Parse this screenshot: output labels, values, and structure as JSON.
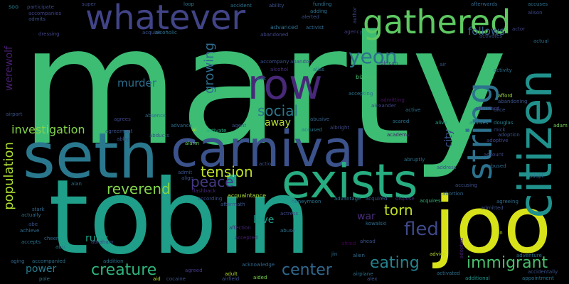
{
  "words": [
    {
      "text": "marty",
      "color": "#3dbc74"
    },
    {
      "text": "tobin",
      "color": "#1f9e89"
    },
    {
      "text": "seth",
      "color": "#2a788e"
    },
    {
      "text": "carnival",
      "color": "#3b528b"
    },
    {
      "text": "exists",
      "color": "#27ad81"
    },
    {
      "text": "joo",
      "color": "#d8e219"
    },
    {
      "text": "citizen",
      "color": "#21918c"
    },
    {
      "text": "whatever",
      "color": "#414487"
    },
    {
      "text": "gathered",
      "color": "#5ec962"
    },
    {
      "text": "row",
      "color": "#482878"
    },
    {
      "text": "string",
      "color": "#2c728e"
    },
    {
      "text": "yeon",
      "color": "#2c728e"
    },
    {
      "text": "social",
      "color": "#2a788e"
    },
    {
      "text": "tension",
      "color": "#bddf26"
    },
    {
      "text": "reverend",
      "color": "#84d44b"
    },
    {
      "text": "peace",
      "color": "#443983"
    },
    {
      "text": "population",
      "color": "#addc30"
    },
    {
      "text": "investigation",
      "color": "#84d44b"
    },
    {
      "text": "creature",
      "color": "#2fb47c"
    },
    {
      "text": "center",
      "color": "#31688e"
    },
    {
      "text": "eating",
      "color": "#25838e"
    },
    {
      "text": "immigrant",
      "color": "#4ac16d"
    },
    {
      "text": "fled",
      "color": "#3e4989"
    },
    {
      "text": "torn",
      "color": "#bddf26"
    },
    {
      "text": "growing",
      "color": "#2f6c8e"
    },
    {
      "text": "werewolf",
      "color": "#481f70"
    },
    {
      "text": "murder",
      "color": "#2e6e8e"
    },
    {
      "text": "follows",
      "color": "#35608d"
    },
    {
      "text": "away",
      "color": "#b5de2b"
    },
    {
      "text": "city",
      "color": "#3b528b"
    },
    {
      "text": "war",
      "color": "#472c7a"
    },
    {
      "text": "love",
      "color": "#1f9a8a"
    },
    {
      "text": "ruby",
      "color": "#1fa088"
    },
    {
      "text": "power",
      "color": "#297b8e"
    },
    {
      "text": "advanced",
      "color": "#2d708e"
    },
    {
      "text": "funding",
      "color": "#2d708e"
    },
    {
      "text": "soo",
      "color": "#26818e"
    },
    {
      "text": "participate",
      "color": "#3e4c8a"
    },
    {
      "text": "activist",
      "color": "#31688e"
    },
    {
      "text": "alcohol",
      "color": "#472d7b"
    },
    {
      "text": "accompany",
      "color": "#3b528b"
    },
    {
      "text": "abandon",
      "color": "#3e4a89"
    },
    {
      "text": "alias",
      "color": "#2c728e"
    },
    {
      "text": "bizarre",
      "color": "#44bf70"
    },
    {
      "text": "african",
      "color": "#443b84"
    },
    {
      "text": "actor",
      "color": "#414487"
    },
    {
      "text": "acquire",
      "color": "#3b528b"
    },
    {
      "text": "abandoned",
      "color": "#3f4788"
    },
    {
      "text": "alexander",
      "color": "#414487"
    },
    {
      "text": "accepting",
      "color": "#2a768e"
    },
    {
      "text": "admitting",
      "color": "#481467"
    },
    {
      "text": "activity",
      "color": "#2d708e"
    },
    {
      "text": "afford",
      "color": "#9fda3a"
    },
    {
      "text": "abandoning",
      "color": "#3b528b"
    },
    {
      "text": "douglas",
      "color": "#26828e"
    },
    {
      "text": "advises",
      "color": "#2a778e"
    },
    {
      "text": "adam",
      "color": "#73d056"
    },
    {
      "text": "account",
      "color": "#3e4989"
    },
    {
      "text": "adopt",
      "color": "#2d718e"
    },
    {
      "text": "accused",
      "color": "#2a788e"
    },
    {
      "text": "alive",
      "color": "#22a785"
    },
    {
      "text": "academy",
      "color": "#481769"
    },
    {
      "text": "active",
      "color": "#2c728e"
    },
    {
      "text": "abusive",
      "color": "#33638d"
    },
    {
      "text": "advance",
      "color": "#2e6f8e"
    },
    {
      "text": "activate",
      "color": "#27ad81"
    },
    {
      "text": "agent",
      "color": "#3b528b"
    },
    {
      "text": "ai",
      "color": "#b8de29"
    },
    {
      "text": "alarm",
      "color": "#65cb5e"
    },
    {
      "text": "action",
      "color": "#3b528b"
    },
    {
      "text": "acquaintance",
      "color": "#a8db34"
    },
    {
      "text": "according",
      "color": "#3b528b"
    },
    {
      "text": "aftermath",
      "color": "#39568c"
    },
    {
      "text": "affection",
      "color": "#482878"
    },
    {
      "text": "accepted",
      "color": "#482173"
    },
    {
      "text": "honeymoon",
      "color": "#2c728e"
    },
    {
      "text": "advantage",
      "color": "#2d708e"
    },
    {
      "text": "acquired",
      "color": "#3b528b"
    },
    {
      "text": "dispose",
      "color": "#482878"
    },
    {
      "text": "acquires",
      "color": "#35b779"
    },
    {
      "text": "abortion",
      "color": "#31688e"
    },
    {
      "text": "admitted",
      "color": "#3b528b"
    },
    {
      "text": "agreeing",
      "color": "#2f6b8e"
    },
    {
      "text": "actress",
      "color": "#3e4a89"
    },
    {
      "text": "kowalski",
      "color": "#2e6e8e"
    },
    {
      "text": "abuse",
      "color": "#2c728e"
    },
    {
      "text": "afraid",
      "color": "#440154"
    },
    {
      "text": "ahead",
      "color": "#3b528b"
    },
    {
      "text": "alien",
      "color": "#2f6c8e"
    },
    {
      "text": "airplane",
      "color": "#2c728e"
    },
    {
      "text": "alex",
      "color": "#3b528b"
    },
    {
      "text": "advice",
      "color": "#b5de2b"
    },
    {
      "text": "activated",
      "color": "#2d708e"
    },
    {
      "text": "additional",
      "color": "#1f958b"
    },
    {
      "text": "adventure",
      "color": "#2c728e"
    },
    {
      "text": "accidentally",
      "color": "#3b528b"
    },
    {
      "text": "appointment",
      "color": "#2c728e"
    },
    {
      "text": "adult",
      "color": "#b8de29"
    },
    {
      "text": "aided",
      "color": "#7ad151"
    },
    {
      "text": "acknowledge",
      "color": "#31688e"
    },
    {
      "text": "airfield",
      "color": "#3b528b"
    },
    {
      "text": "agreed",
      "color": "#443983"
    },
    {
      "text": "align",
      "color": "#3b528b"
    },
    {
      "text": "admit",
      "color": "#3b528b"
    },
    {
      "text": "abraham",
      "color": "#414487"
    },
    {
      "text": "addition",
      "color": "#2c728e"
    },
    {
      "text": "accompanied",
      "color": "#2d708e"
    },
    {
      "text": "aging",
      "color": "#31688e"
    },
    {
      "text": "abu",
      "color": "#2a788e"
    },
    {
      "text": "accepts",
      "color": "#2c728e"
    },
    {
      "text": "cheer",
      "color": "#31688e"
    },
    {
      "text": "achieve",
      "color": "#2f6c8e"
    },
    {
      "text": "actually",
      "color": "#2d708e"
    },
    {
      "text": "abe",
      "color": "#3b528b"
    },
    {
      "text": "stark",
      "color": "#31688e"
    },
    {
      "text": "alan",
      "color": "#2c728e"
    },
    {
      "text": "agrees",
      "color": "#3e4989"
    },
    {
      "text": "absence",
      "color": "#2f6c8e"
    },
    {
      "text": "airport",
      "color": "#3b528b"
    },
    {
      "text": "dressing",
      "color": "#414487"
    },
    {
      "text": "accident",
      "color": "#2c728e"
    },
    {
      "text": "ability",
      "color": "#3b528b"
    },
    {
      "text": "adding",
      "color": "#2c728e"
    },
    {
      "text": "alerted",
      "color": "#3b528b"
    },
    {
      "text": "agency",
      "color": "#443b84"
    },
    {
      "text": "author",
      "color": "#3e4989"
    },
    {
      "text": "afterwards",
      "color": "#31688e"
    },
    {
      "text": "accuses",
      "color": "#2c728e"
    },
    {
      "text": "alison",
      "color": "#3e4989"
    },
    {
      "text": "actual",
      "color": "#2d708e"
    },
    {
      "text": "activates",
      "color": "#3b528b"
    },
    {
      "text": "super",
      "color": "#3e4989"
    },
    {
      "text": "loop",
      "color": "#2c728e"
    },
    {
      "text": "accompanies",
      "color": "#414487"
    },
    {
      "text": "admits",
      "color": "#3b528b"
    },
    {
      "text": "mick",
      "color": "#3b528b"
    },
    {
      "text": "adoption",
      "color": "#3b528b"
    },
    {
      "text": "adoptive",
      "color": "#3e4989"
    },
    {
      "text": "abruptly",
      "color": "#2c728e"
    },
    {
      "text": "address",
      "color": "#3b528b"
    },
    {
      "text": "abused",
      "color": "#2f6c8e"
    },
    {
      "text": "accusing",
      "color": "#3b528b"
    },
    {
      "text": "jin",
      "color": "#2d708e"
    },
    {
      "text": "cocaine",
      "color": "#3b528b"
    },
    {
      "text": "aid",
      "color": "#b5de2b"
    },
    {
      "text": "pole",
      "color": "#2c728e"
    },
    {
      "text": "alcoholic",
      "color": "#2c728e"
    },
    {
      "text": "adopted",
      "color": "#482173"
    },
    {
      "text": "an",
      "color": "#b8de29"
    },
    {
      "text": "air",
      "color": "#3b528b"
    },
    {
      "text": "afterward",
      "color": "#414487"
    },
    {
      "text": "abby",
      "color": "#3b528b"
    },
    {
      "text": "abducts",
      "color": "#3b528b"
    },
    {
      "text": "agreement",
      "color": "#3b528b"
    },
    {
      "text": "alec",
      "color": "#2d708e"
    },
    {
      "text": "albright",
      "color": "#3e4989"
    },
    {
      "text": "alice",
      "color": "#3b528b"
    },
    {
      "text": "scared",
      "color": "#2c728e"
    },
    {
      "text": "flashback",
      "color": "#482878"
    }
  ]
}
